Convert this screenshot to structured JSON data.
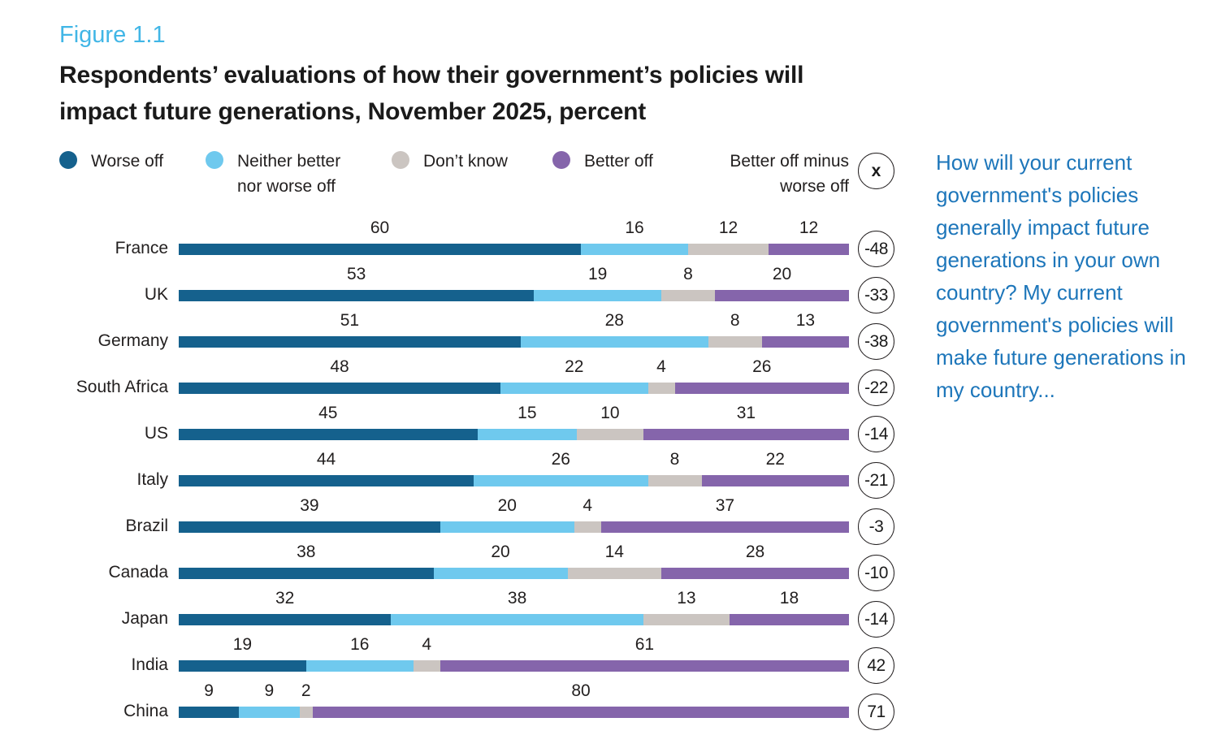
{
  "figure": {
    "label": "Figure 1.1",
    "title_line1": "Respondents’ evaluations of how their government’s policies will",
    "title_line2": "impact future generations, November 2025, percent"
  },
  "legend": {
    "net_label": "Better off minus worse off",
    "net_symbol": "x"
  },
  "side_note": "How will your current government's policies generally impact future generations in your own country? My current government's policies will make future generations in my country...",
  "colors": {
    "worse_off": "#15618d",
    "neither": "#6fc9ee",
    "dont_know": "#cbc5c1",
    "better_off": "#8565ab",
    "figure_label_blue": "#41b6e6",
    "side_note_blue": "#1d76ba"
  },
  "chart_data": {
    "type": "bar",
    "orientation": "horizontal",
    "stacked": true,
    "title": "Respondents’ evaluations of how their government’s policies will impact future generations, November 2025, percent",
    "xlabel": "",
    "ylabel": "",
    "xlim": [
      0,
      100
    ],
    "grid": false,
    "legend_position": "top",
    "categories": [
      "France",
      "UK",
      "Germany",
      "South Africa",
      "US",
      "Italy",
      "Brazil",
      "Canada",
      "Japan",
      "India",
      "China"
    ],
    "series": [
      {
        "name": "Worse off",
        "color": "#15618d",
        "values": [
          60,
          53,
          51,
          48,
          45,
          44,
          39,
          38,
          32,
          19,
          9
        ]
      },
      {
        "name": "Neither better nor worse off",
        "color": "#6fc9ee",
        "values": [
          16,
          19,
          28,
          22,
          15,
          26,
          20,
          20,
          38,
          16,
          9
        ]
      },
      {
        "name": "Don’t know",
        "color": "#cbc5c1",
        "values": [
          12,
          8,
          8,
          4,
          10,
          8,
          4,
          14,
          13,
          4,
          2
        ]
      },
      {
        "name": "Better off",
        "color": "#8565ab",
        "values": [
          12,
          20,
          13,
          26,
          31,
          22,
          37,
          28,
          18,
          61,
          80
        ]
      }
    ],
    "net": {
      "name": "Better off minus worse off",
      "values": [
        -48,
        -33,
        -38,
        -22,
        -14,
        -21,
        -3,
        -10,
        -14,
        42,
        71
      ]
    }
  }
}
